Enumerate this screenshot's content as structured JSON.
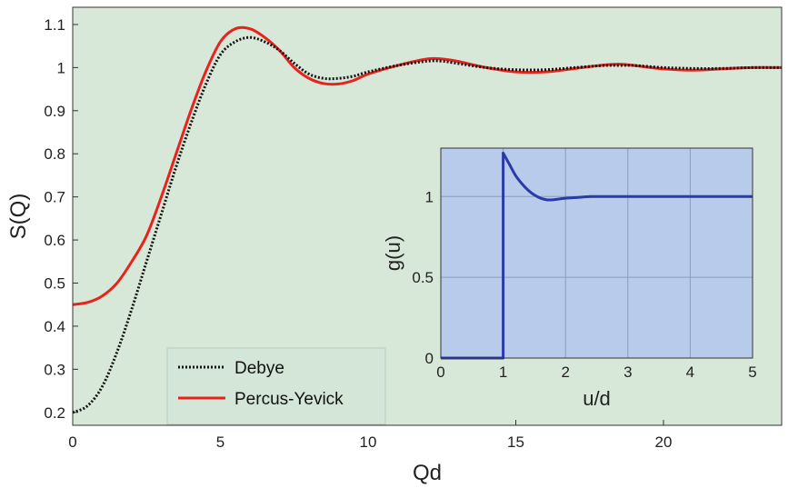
{
  "colors": {
    "main_background": "#d8e8d8",
    "inset_background": "#b8cbea",
    "debye": "#111111",
    "percus_yevick": "#e8231d",
    "g_curve": "#2a3aa8",
    "grid": "#8a9cbc"
  },
  "chart_data": [
    {
      "type": "line",
      "title": "",
      "xlabel": "Qd",
      "ylabel": "S(Q)",
      "xlim": [
        0,
        24
      ],
      "ylim": [
        0.17,
        1.14
      ],
      "xticks": [
        0,
        5,
        10,
        15,
        20
      ],
      "xtick_labels": [
        "0",
        "5",
        "10",
        "15",
        "20"
      ],
      "yticks": [
        0.2,
        0.3,
        0.4,
        0.5,
        0.6,
        0.7,
        0.8,
        0.9,
        1,
        1.1
      ],
      "ytick_labels": [
        "0.2",
        "0.3",
        "0.4",
        "0.5",
        "0.6",
        "0.7",
        "0.8",
        "0.9",
        "1",
        "1.1"
      ],
      "grid": false,
      "legend_position": "bottom-left",
      "series": [
        {
          "name": "Debye",
          "style": "dotted",
          "x": [
            0,
            0.5,
            1,
            1.5,
            2,
            2.5,
            3,
            3.5,
            4,
            4.5,
            5,
            5.5,
            6,
            6.5,
            7,
            7.5,
            8,
            8.5,
            9,
            9.5,
            10,
            11,
            12,
            12.5,
            13,
            14,
            15,
            16,
            17,
            18,
            18.5,
            19,
            20,
            21,
            22,
            23,
            24
          ],
          "y": [
            0.2,
            0.215,
            0.26,
            0.34,
            0.44,
            0.55,
            0.66,
            0.77,
            0.87,
            0.96,
            1.03,
            1.06,
            1.07,
            1.06,
            1.04,
            1.01,
            0.985,
            0.975,
            0.975,
            0.98,
            0.99,
            1.005,
            1.015,
            1.015,
            1.01,
            1.0,
            0.995,
            0.995,
            1.0,
            1.005,
            1.005,
            1.005,
            1.0,
            0.998,
            0.998,
            1.0,
            1.0
          ]
        },
        {
          "name": "Percus-Yevick",
          "style": "solid",
          "x": [
            0,
            0.5,
            1,
            1.5,
            2,
            2.5,
            3,
            3.5,
            4,
            4.5,
            5,
            5.5,
            6,
            6.5,
            7,
            7.5,
            8,
            8.5,
            9,
            9.5,
            10,
            11,
            12,
            12.5,
            13,
            14,
            15,
            16,
            17,
            18,
            18.5,
            19,
            20,
            21,
            22,
            23,
            24
          ],
          "y": [
            0.45,
            0.455,
            0.47,
            0.5,
            0.55,
            0.61,
            0.7,
            0.8,
            0.9,
            0.99,
            1.06,
            1.09,
            1.09,
            1.07,
            1.04,
            1.0,
            0.975,
            0.963,
            0.962,
            0.97,
            0.985,
            1.005,
            1.02,
            1.02,
            1.015,
            1.0,
            0.99,
            0.99,
            0.998,
            1.006,
            1.008,
            1.005,
            0.997,
            0.994,
            0.997,
            1.0,
            1.0
          ]
        }
      ]
    },
    {
      "type": "line",
      "title": "",
      "xlabel": "u/d",
      "ylabel": "g(u)",
      "xlim": [
        0,
        5
      ],
      "ylim": [
        0,
        1.3
      ],
      "xticks": [
        0,
        1,
        2,
        3,
        4,
        5
      ],
      "xtick_labels": [
        "0",
        "1",
        "2",
        "3",
        "4",
        "5"
      ],
      "yticks": [
        0,
        0.5,
        1
      ],
      "ytick_labels": [
        "0",
        "0.5",
        "1"
      ],
      "grid": true,
      "series": [
        {
          "x": [
            0,
            1,
            1,
            1.1,
            1.2,
            1.3,
            1.4,
            1.5,
            1.6,
            1.7,
            1.8,
            1.9,
            2.0,
            2.2,
            2.4,
            2.6,
            3,
            3.5,
            4,
            4.5,
            5
          ],
          "y": [
            0,
            0,
            1.27,
            1.2,
            1.13,
            1.08,
            1.04,
            1.01,
            0.99,
            0.98,
            0.98,
            0.985,
            0.99,
            0.995,
            1.0,
            1.0,
            1.0,
            1.0,
            1.0,
            1.0,
            1.0
          ]
        }
      ]
    }
  ]
}
